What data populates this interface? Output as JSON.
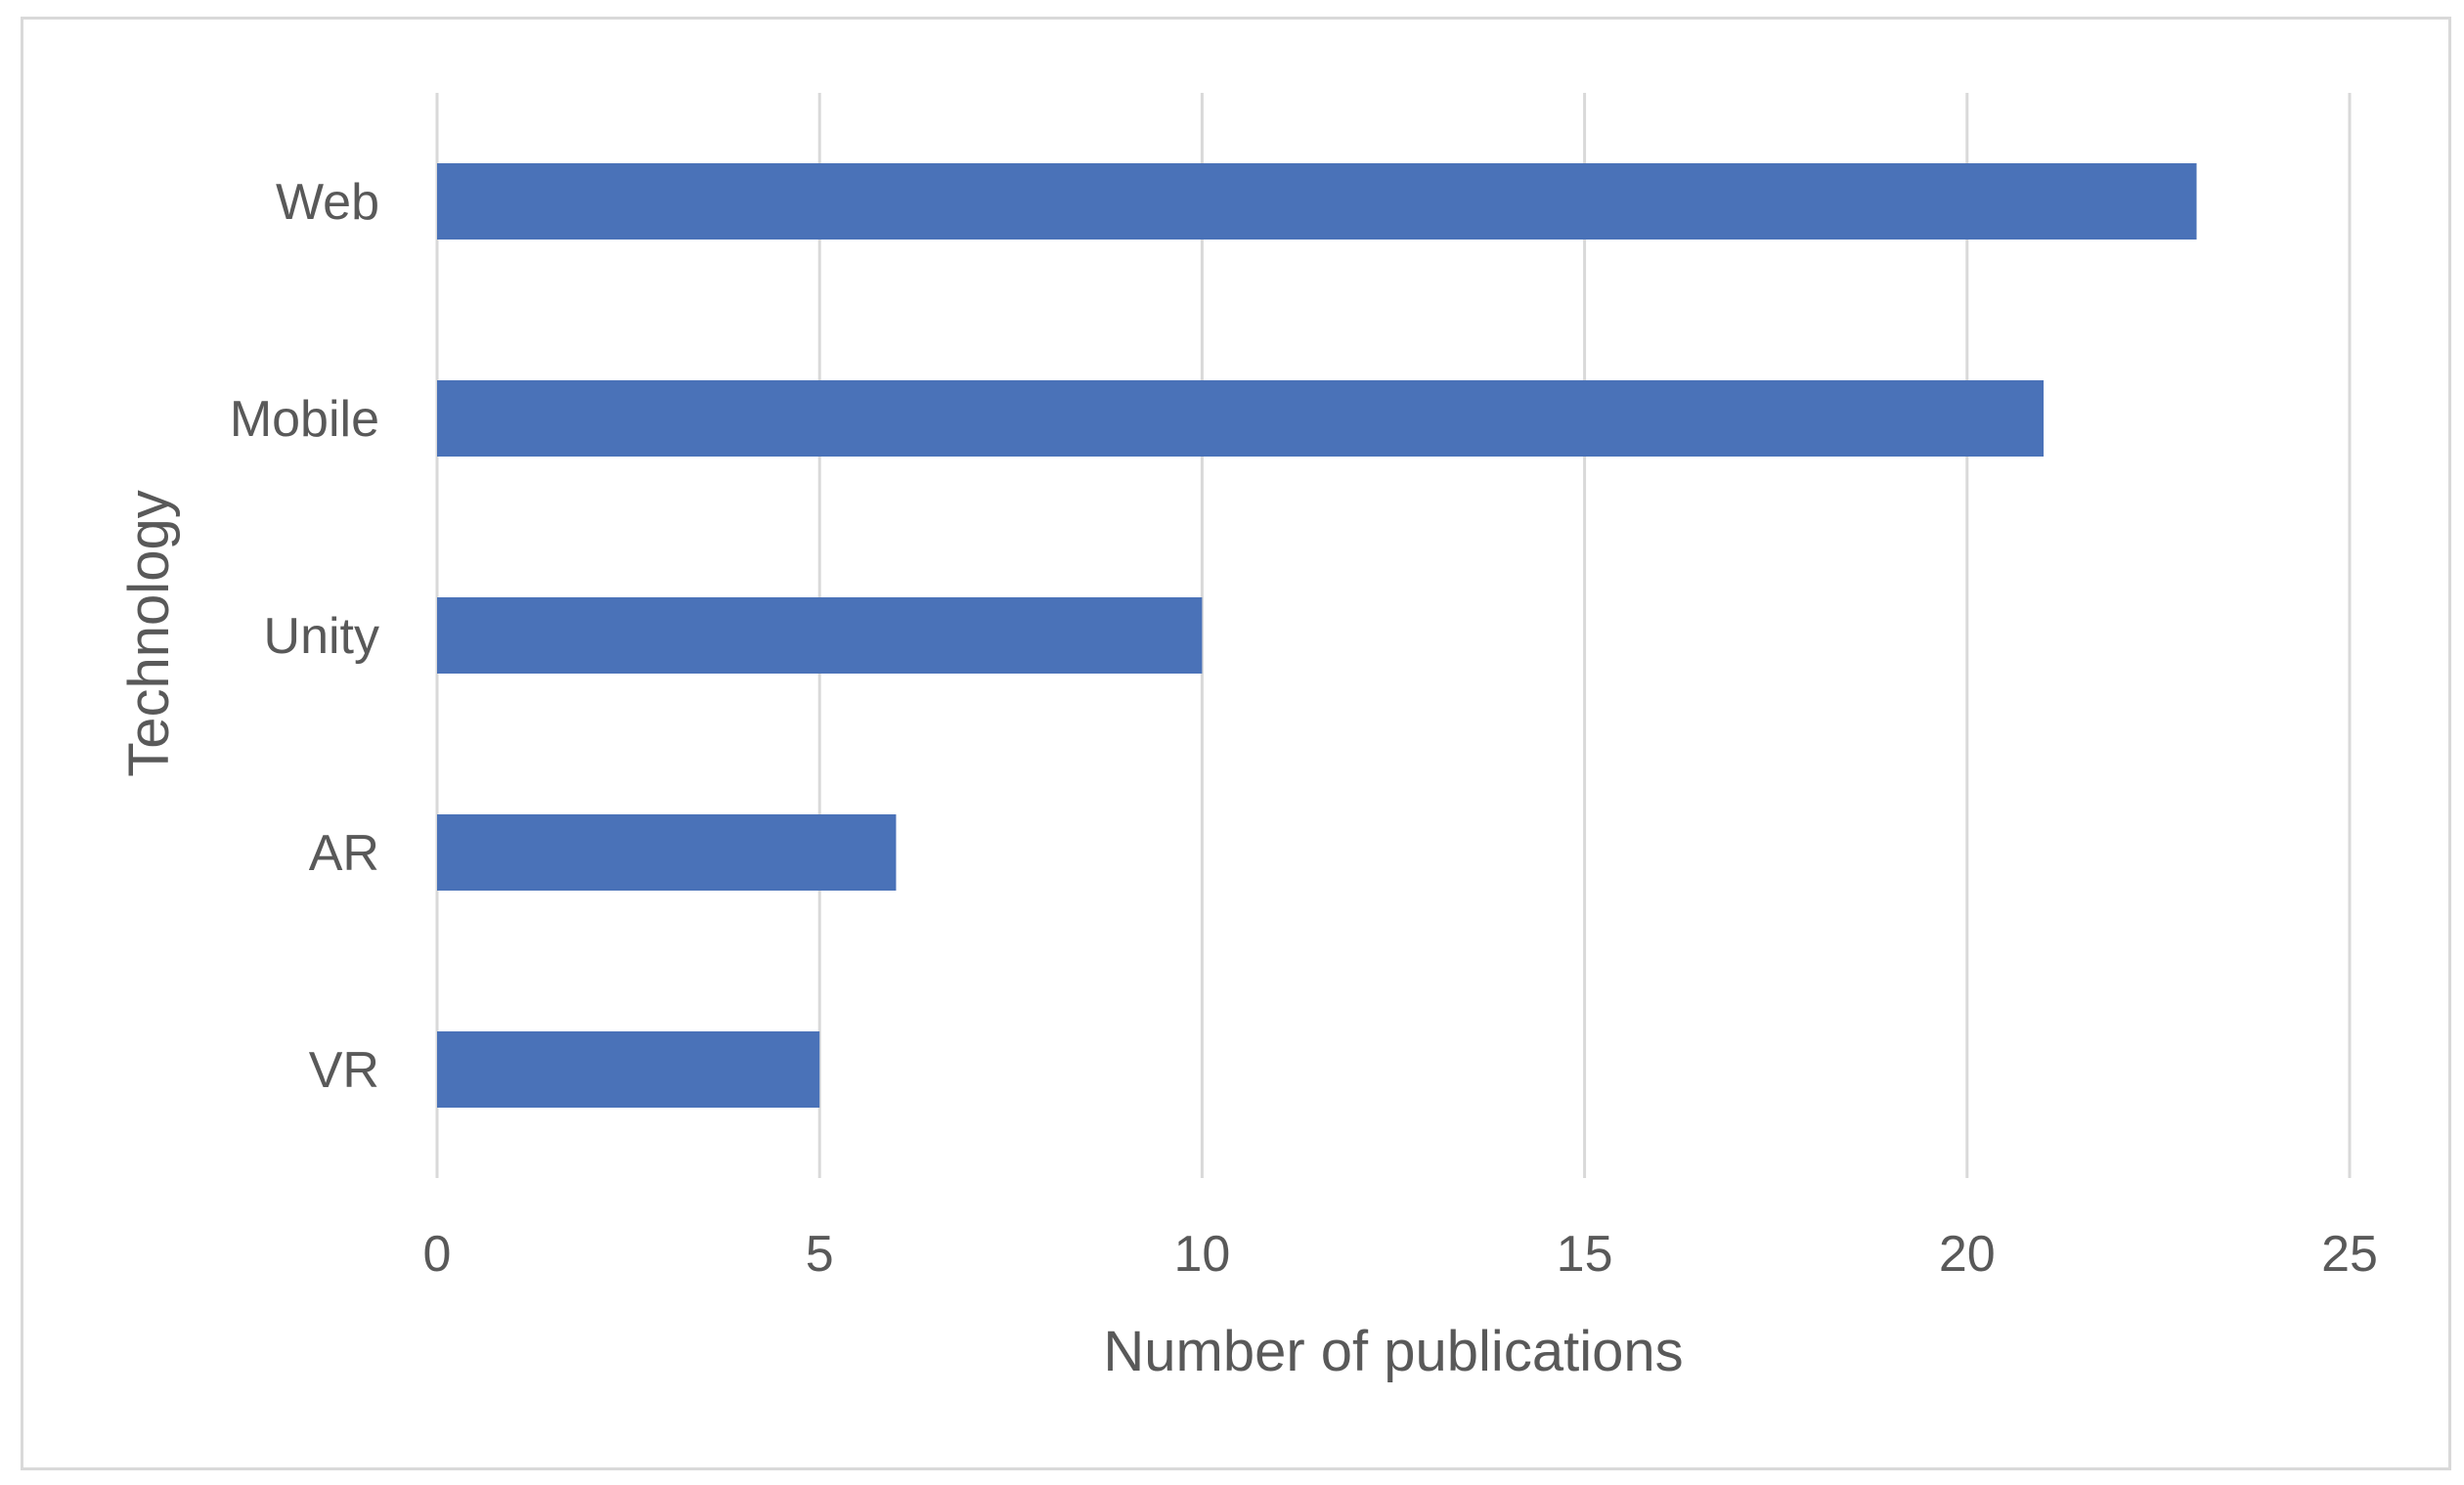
{
  "chart_data": {
    "type": "bar",
    "orientation": "horizontal",
    "categories": [
      "Web",
      "Mobile",
      "Unity",
      "AR",
      "VR"
    ],
    "values": [
      23,
      21,
      10,
      6,
      5
    ],
    "title": "",
    "xlabel": "Number of publications",
    "ylabel": "Technology",
    "xlim": [
      0,
      25
    ],
    "xticks": [
      "0",
      "5",
      "10",
      "15",
      "20",
      "25"
    ],
    "grid": true,
    "legend": "none",
    "bar_color": "#4a72b8",
    "grid_color": "#d9d9d9",
    "text_color": "#595959"
  }
}
